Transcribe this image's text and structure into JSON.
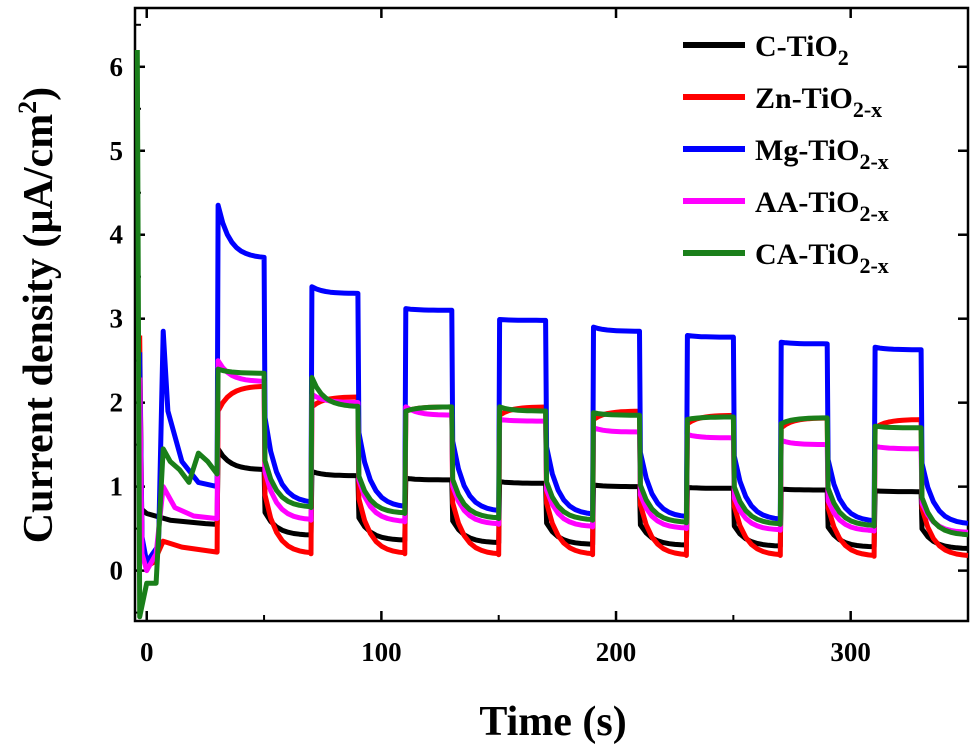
{
  "chart_data": {
    "type": "line",
    "xlabel": "Time (s)",
    "ylabel": "Current density (µA/cm²)",
    "ylabel_main": "Current density (µA/cm",
    "ylabel_sup": "2",
    "ylabel_tail": ")",
    "xlim": [
      -5,
      350
    ],
    "ylim": [
      -0.6,
      6.7
    ],
    "xticks": [
      0,
      100,
      200,
      300
    ],
    "yticks": [
      0,
      1,
      2,
      3,
      4,
      5,
      6
    ],
    "grid": false,
    "legend_position": "top-right",
    "light_period_s": 20,
    "series": [
      {
        "name": "C-TiO2",
        "name_main": "C-TiO",
        "name_sub": "2",
        "color": "#000000",
        "initial": [
          [
            -3,
            0.75
          ],
          [
            0,
            0.68
          ],
          [
            10,
            0.6
          ],
          [
            25,
            0.56
          ],
          [
            30,
            0.55
          ]
        ],
        "cycles": [
          {
            "on": 30,
            "off": 50,
            "dark": 0.55,
            "peak": 1.45,
            "plateau": 1.2
          },
          {
            "on": 70,
            "off": 90,
            "dark": 0.42,
            "peak": 1.18,
            "plateau": 1.13
          },
          {
            "on": 110,
            "off": 130,
            "dark": 0.36,
            "peak": 1.1,
            "plateau": 1.08
          },
          {
            "on": 150,
            "off": 170,
            "dark": 0.33,
            "peak": 1.06,
            "plateau": 1.04
          },
          {
            "on": 190,
            "off": 210,
            "dark": 0.31,
            "peak": 1.02,
            "plateau": 1.0
          },
          {
            "on": 230,
            "off": 250,
            "dark": 0.3,
            "peak": 0.99,
            "plateau": 0.98
          },
          {
            "on": 270,
            "off": 290,
            "dark": 0.29,
            "peak": 0.97,
            "plateau": 0.96
          },
          {
            "on": 310,
            "off": 330,
            "dark": 0.28,
            "peak": 0.95,
            "plateau": 0.94
          }
        ],
        "final_dark": 0.26
      },
      {
        "name": "Zn-TiO2-x",
        "name_main": "Zn-TiO",
        "name_sub": "2-x",
        "color": "#ff0000",
        "initial": [
          [
            -3,
            2.8
          ],
          [
            -2,
            0.3
          ],
          [
            0,
            0.05
          ],
          [
            3,
            0.1
          ],
          [
            7,
            0.35
          ],
          [
            15,
            0.28
          ],
          [
            30,
            0.22
          ]
        ],
        "cycles": [
          {
            "on": 30,
            "off": 50,
            "dark": 0.22,
            "peak": 1.9,
            "plateau": 2.2
          },
          {
            "on": 70,
            "off": 90,
            "dark": 0.2,
            "peak": 1.95,
            "plateau": 2.07
          },
          {
            "on": 110,
            "off": 130,
            "dark": 0.2,
            "peak": 1.9,
            "plateau": 1.95
          },
          {
            "on": 150,
            "off": 170,
            "dark": 0.19,
            "peak": 1.85,
            "plateau": 1.95
          },
          {
            "on": 190,
            "off": 210,
            "dark": 0.19,
            "peak": 1.8,
            "plateau": 1.9
          },
          {
            "on": 230,
            "off": 250,
            "dark": 0.18,
            "peak": 1.75,
            "plateau": 1.85
          },
          {
            "on": 270,
            "off": 290,
            "dark": 0.18,
            "peak": 1.7,
            "plateau": 1.82
          },
          {
            "on": 310,
            "off": 330,
            "dark": 0.17,
            "peak": 1.7,
            "plateau": 1.8
          }
        ],
        "final_dark": 0.17
      },
      {
        "name": "Mg-TiO2-x",
        "name_main": "Mg-TiO",
        "name_sub": "2-x",
        "color": "#0000ff",
        "initial": [
          [
            -3,
            2.6
          ],
          [
            -2,
            0.4
          ],
          [
            0,
            0.1
          ],
          [
            5,
            0.3
          ],
          [
            7,
            2.85
          ],
          [
            9,
            1.9
          ],
          [
            15,
            1.3
          ],
          [
            22,
            1.05
          ],
          [
            30,
            1.0
          ]
        ],
        "cycles": [
          {
            "on": 30,
            "off": 50,
            "dark": 1.0,
            "peak": 4.35,
            "plateau": 3.72
          },
          {
            "on": 70,
            "off": 90,
            "dark": 0.8,
            "peak": 3.38,
            "plateau": 3.3
          },
          {
            "on": 110,
            "off": 130,
            "dark": 0.75,
            "peak": 3.12,
            "plateau": 3.1
          },
          {
            "on": 150,
            "off": 170,
            "dark": 0.7,
            "peak": 2.99,
            "plateau": 2.98
          },
          {
            "on": 190,
            "off": 210,
            "dark": 0.66,
            "peak": 2.9,
            "plateau": 2.85
          },
          {
            "on": 230,
            "off": 250,
            "dark": 0.63,
            "peak": 2.8,
            "plateau": 2.78
          },
          {
            "on": 270,
            "off": 290,
            "dark": 0.6,
            "peak": 2.72,
            "plateau": 2.7
          },
          {
            "on": 310,
            "off": 330,
            "dark": 0.58,
            "peak": 2.66,
            "plateau": 2.63
          }
        ],
        "final_dark": 0.55
      },
      {
        "name": "AA-TiO2-x",
        "name_main": "AA-TiO",
        "name_sub": "2-x",
        "color": "#ff00ff",
        "initial": [
          [
            -3,
            2.3
          ],
          [
            -2,
            0.2
          ],
          [
            0,
            0.0
          ],
          [
            4,
            0.2
          ],
          [
            7,
            1.0
          ],
          [
            12,
            0.75
          ],
          [
            20,
            0.65
          ],
          [
            30,
            0.62
          ]
        ],
        "cycles": [
          {
            "on": 30,
            "off": 50,
            "dark": 0.62,
            "peak": 2.5,
            "plateau": 2.25
          },
          {
            "on": 70,
            "off": 90,
            "dark": 0.6,
            "peak": 2.1,
            "plateau": 2.0
          },
          {
            "on": 110,
            "off": 130,
            "dark": 0.58,
            "peak": 1.95,
            "plateau": 1.85
          },
          {
            "on": 150,
            "off": 170,
            "dark": 0.55,
            "peak": 1.8,
            "plateau": 1.78
          },
          {
            "on": 190,
            "off": 210,
            "dark": 0.52,
            "peak": 1.7,
            "plateau": 1.65
          },
          {
            "on": 230,
            "off": 250,
            "dark": 0.5,
            "peak": 1.62,
            "plateau": 1.58
          },
          {
            "on": 270,
            "off": 290,
            "dark": 0.48,
            "peak": 1.55,
            "plateau": 1.5
          },
          {
            "on": 310,
            "off": 330,
            "dark": 0.47,
            "peak": 1.48,
            "plateau": 1.45
          }
        ],
        "final_dark": 0.45
      },
      {
        "name": "CA-TiO2-x",
        "name_main": "CA-TiO",
        "name_sub": "2-x",
        "color": "#1a7f1a",
        "initial": [
          [
            -4,
            6.2
          ],
          [
            -3,
            -0.55
          ],
          [
            0,
            -0.15
          ],
          [
            4,
            -0.15
          ],
          [
            7,
            1.45
          ],
          [
            10,
            1.3
          ],
          [
            14,
            1.2
          ],
          [
            18,
            1.05
          ],
          [
            22,
            1.4
          ],
          [
            26,
            1.3
          ],
          [
            30,
            1.15
          ]
        ],
        "cycles": [
          {
            "on": 30,
            "off": 50,
            "dark": 1.15,
            "peak": 2.4,
            "plateau": 2.35
          },
          {
            "on": 70,
            "off": 90,
            "dark": 0.75,
            "peak": 2.3,
            "plateau": 1.95
          },
          {
            "on": 110,
            "off": 130,
            "dark": 0.68,
            "peak": 1.9,
            "plateau": 1.95
          },
          {
            "on": 150,
            "off": 170,
            "dark": 0.62,
            "peak": 1.95,
            "plateau": 1.9
          },
          {
            "on": 190,
            "off": 210,
            "dark": 0.6,
            "peak": 1.88,
            "plateau": 1.85
          },
          {
            "on": 230,
            "off": 250,
            "dark": 0.57,
            "peak": 1.8,
            "plateau": 1.83
          },
          {
            "on": 270,
            "off": 290,
            "dark": 0.55,
            "peak": 1.75,
            "plateau": 1.82
          },
          {
            "on": 310,
            "off": 330,
            "dark": 0.53,
            "peak": 1.72,
            "plateau": 1.7
          }
        ],
        "final_dark": 0.42
      }
    ]
  }
}
